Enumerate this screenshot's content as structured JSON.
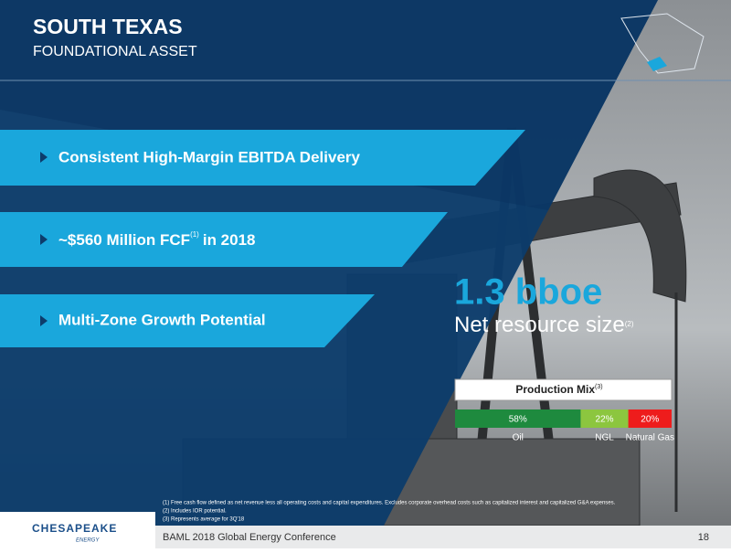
{
  "header": {
    "title": "SOUTH TEXAS",
    "subtitle": "FOUNDATIONAL ASSET"
  },
  "bullets": [
    {
      "text": "Consistent High-Margin EBITDA Delivery"
    },
    {
      "text": "~$560 Million FCF",
      "note": "(1)",
      "text_after": "in 2018"
    },
    {
      "text": "Multi-Zone Growth Potential"
    }
  ],
  "highlight": {
    "value": "1.3 bboe",
    "label": "Net resource size",
    "note": "(2)"
  },
  "chart_data": {
    "type": "stacked-bar",
    "title": "Production Mix",
    "title_note": "(3)",
    "series": [
      {
        "name": "Oil",
        "color": "#1e8a3e",
        "values": [
          58
        ],
        "value_labels": [
          "58%"
        ]
      },
      {
        "name": "NGL",
        "color": "#8cc63f",
        "values": [
          22
        ],
        "value_labels": [
          "22%"
        ]
      },
      {
        "name": "Natural Gas",
        "color": "#ee1c1c",
        "values": [
          20
        ],
        "value_labels": [
          "20%"
        ]
      }
    ]
  },
  "footnotes": [
    "(1)  Free cash flow defined as net revenue less all operating costs and capital expenditures. Excludes corporate overhead costs such as capitalized interest and capitalized G&A expenses.",
    "(2)  Includes IOR potential.",
    "(3)  Represents average for 3Q'18"
  ],
  "footer": {
    "logo": "CHESAPEAKE",
    "logo_sub": "ENERGY",
    "event": "BAML 2018 Global Energy Conference",
    "page": "18"
  }
}
